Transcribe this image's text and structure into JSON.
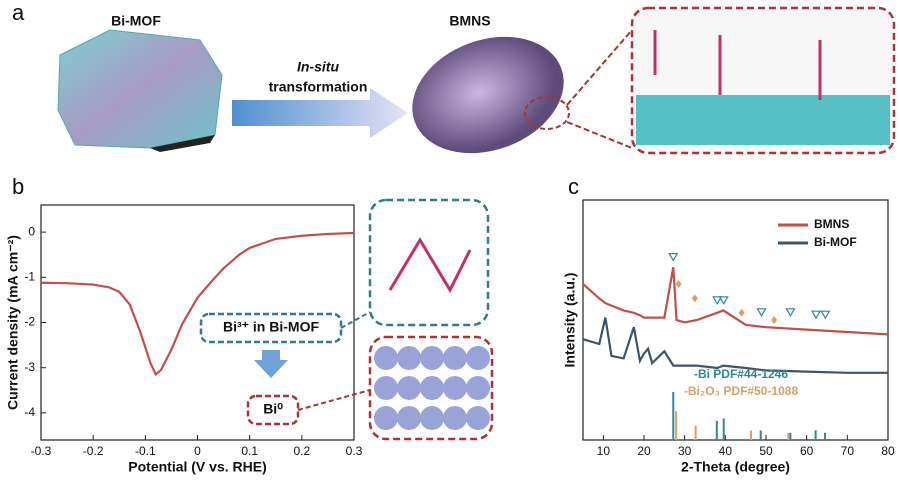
{
  "figure": {
    "panel_a": {
      "label": "a",
      "left_title": "Bi-MOF",
      "right_title": "BMNS",
      "arrow_line1": "In-situ",
      "arrow_line2": "transformation"
    }
  },
  "chart_data": [
    {
      "type": "line",
      "panel": "b",
      "xlabel": "Potential (V vs. RHE)",
      "ylabel": "Current density (mA cm⁻²)",
      "x": [
        -0.3,
        -0.25,
        -0.2,
        -0.17,
        -0.15,
        -0.13,
        -0.11,
        -0.09,
        -0.08,
        -0.07,
        -0.05,
        -0.03,
        0.0,
        0.03,
        0.05,
        0.08,
        0.1,
        0.15,
        0.2,
        0.25,
        0.3
      ],
      "series": [
        {
          "name": "BMNS",
          "color": "#c0504d",
          "values": [
            -1.12,
            -1.13,
            -1.16,
            -1.22,
            -1.32,
            -1.6,
            -2.2,
            -2.9,
            -3.15,
            -3.05,
            -2.6,
            -2.05,
            -1.45,
            -1.05,
            -0.8,
            -0.5,
            -0.35,
            -0.15,
            -0.08,
            -0.04,
            -0.02
          ]
        }
      ],
      "xlim": [
        -0.3,
        0.3
      ],
      "xticks": [
        -0.3,
        -0.2,
        -0.1,
        0.0,
        0.1,
        0.2,
        0.3
      ],
      "ylim": [
        -4.6,
        0.6
      ],
      "yticks": [
        0,
        -1,
        -2,
        -3,
        -4
      ],
      "annotations": [
        "Bi³⁺ in Bi-MOF",
        "Bi⁰"
      ]
    },
    {
      "type": "line",
      "panel": "c",
      "xlabel": "2-Theta (degree)",
      "ylabel": "Intensity (a.u.)",
      "x": [
        5,
        9,
        10.5,
        12,
        15,
        17.5,
        19,
        20,
        21,
        22,
        25,
        27.2,
        28,
        30,
        33,
        38,
        39.5,
        45,
        50,
        60,
        70,
        80
      ],
      "series": [
        {
          "name": "BMNS",
          "color": "#c0504d",
          "values": [
            65,
            59,
            57,
            56,
            54,
            53,
            52,
            51,
            51,
            51,
            51,
            72,
            50,
            49,
            50,
            53,
            54,
            48,
            47,
            46,
            45,
            44
          ]
        },
        {
          "name": "Bi-MOF",
          "color": "#3f5468",
          "values": [
            42,
            40,
            51,
            35,
            34,
            47,
            33,
            36,
            38,
            32,
            37,
            31,
            31,
            31,
            31,
            30,
            31,
            30,
            29,
            28.5,
            28,
            28
          ]
        }
      ],
      "references": [
        {
          "name": "-Bi PDF#44-1246",
          "color": "#31859c",
          "x": [
            27.2,
            37.9,
            39.6,
            48.7,
            56.0,
            62.2,
            64.5
          ],
          "values": [
            20,
            8,
            9,
            4,
            3,
            4,
            3
          ]
        },
        {
          "name": "-Bi₂O₃ PDF#50-1088",
          "color": "#d9a066",
          "x": [
            27.9,
            32.7,
            46.3,
            55.5
          ],
          "values": [
            12,
            6,
            4,
            3
          ]
        }
      ],
      "triangles": {
        "color": "#31859c",
        "x": [
          27.2,
          38.0,
          39.6,
          48.9,
          56.0,
          62.3,
          64.6
        ],
        "values": [
          76,
          58,
          58,
          53,
          53,
          52,
          52
        ]
      },
      "diamonds": {
        "color": "#d9a066",
        "x": [
          28.5,
          32.5,
          44.0,
          52.0
        ],
        "values": [
          65,
          59,
          53,
          50
        ]
      },
      "xlim": [
        5,
        80
      ],
      "xticks": [
        10,
        20,
        30,
        40,
        50,
        60,
        70,
        80
      ],
      "ylim": [
        0,
        100
      ]
    }
  ]
}
